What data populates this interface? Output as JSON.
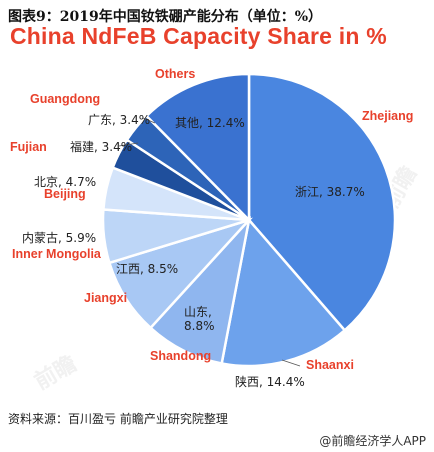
{
  "header": {
    "cn_title": "图表9：2019年中国钕铁硼产能分布（单位：%）",
    "en_title": "China NdFeB Capacity Share in %"
  },
  "chart_data": {
    "type": "pie",
    "slices": [
      {
        "en": "Zhejiang",
        "cn": "浙江",
        "value": 38.7,
        "label": "浙江, 38.7%",
        "color": "#4a86e0"
      },
      {
        "en": "Shaanxi",
        "cn": "陕西",
        "value": 14.4,
        "label": "陕西, 14.4%",
        "color": "#6da2ec"
      },
      {
        "en": "Shandong",
        "cn": "山东",
        "value": 8.8,
        "label_lines": [
          "山东,",
          "8.8%"
        ],
        "color": "#8fb6ef"
      },
      {
        "en": "Jiangxi",
        "cn": "江西",
        "value": 8.5,
        "label": "江西, 8.5%",
        "color": "#a8c8f4"
      },
      {
        "en": "Inner Mongolia",
        "cn": "内蒙古",
        "value": 5.9,
        "label": "内蒙古, 5.9%",
        "color": "#bdd6f7"
      },
      {
        "en": "Beijing",
        "cn": "北京",
        "value": 4.7,
        "label": "北京, 4.7%",
        "color": "#d4e4fa"
      },
      {
        "en": "Fujian",
        "cn": "福建",
        "value": 3.4,
        "label": "福建, 3.4%",
        "color": "#1f4f9c"
      },
      {
        "en": "Guangdong",
        "cn": "广东",
        "value": 3.4,
        "label": "广东, 3.4%",
        "color": "#2d64b8"
      },
      {
        "en": "Others",
        "cn": "其他",
        "value": 12.4,
        "label": "其他, 12.4%",
        "color": "#3a72d0"
      }
    ]
  },
  "footer": {
    "source": "资料来源：百川盈亏  前瞻产业研究院整理",
    "brand": "@前瞻经济学人APP"
  },
  "colors": {
    "accent_red": "#e8412c",
    "leader": "#555555"
  }
}
